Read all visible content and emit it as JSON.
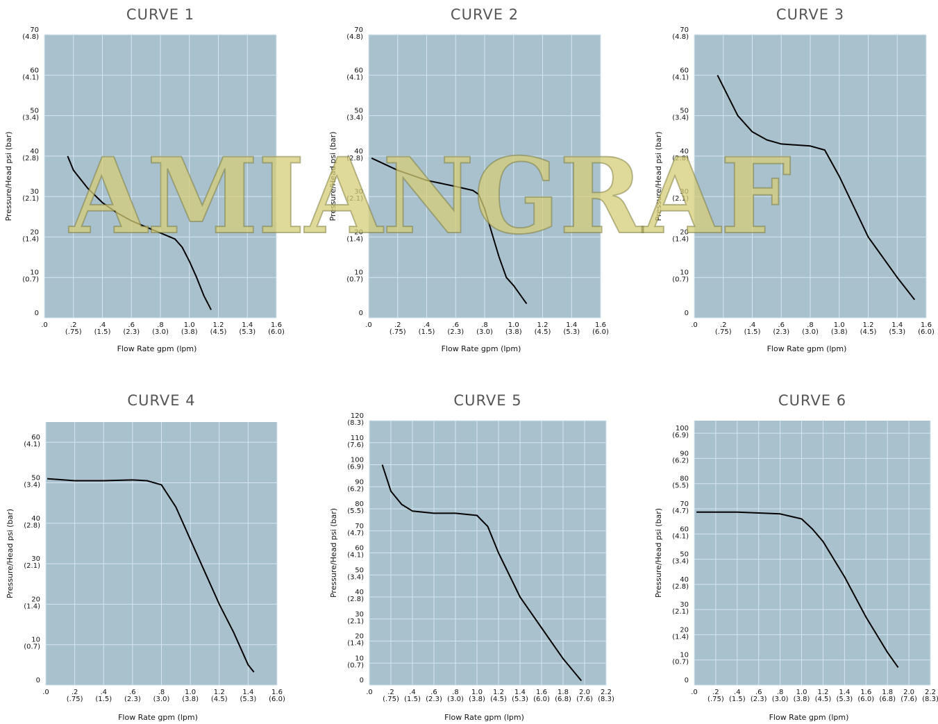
{
  "watermark": "AMIANGRAF",
  "chart_data": [
    {
      "type": "line",
      "title": "CURVE 1",
      "x_label": "Flow Rate gpm (lpm)",
      "y_label": "Pressure/Head psi (bar)",
      "grid": true,
      "xlim": [
        0,
        1.6
      ],
      "ylim": [
        0,
        70
      ],
      "xticks": [
        {
          "value": 0,
          "label": [
            ".0"
          ]
        },
        {
          "value": 0.2,
          "label": [
            ".2",
            "(.75)"
          ]
        },
        {
          "value": 0.4,
          "label": [
            ".4",
            "(1.5)"
          ]
        },
        {
          "value": 0.6,
          "label": [
            ".6",
            "(2.3)"
          ]
        },
        {
          "value": 0.8,
          "label": [
            ".8",
            "(3.0)"
          ]
        },
        {
          "value": 1.0,
          "label": [
            "1.0",
            "(3.8)"
          ]
        },
        {
          "value": 1.2,
          "label": [
            "1.2",
            "(4.5)"
          ]
        },
        {
          "value": 1.4,
          "label": [
            "1.4",
            "(5.3)"
          ]
        },
        {
          "value": 1.6,
          "label": [
            "1.6",
            "(6.0)"
          ]
        }
      ],
      "yticks": [
        {
          "value": 0,
          "label": [
            "0"
          ]
        },
        {
          "value": 10,
          "label": [
            "10",
            "(0.7)"
          ]
        },
        {
          "value": 20,
          "label": [
            "20",
            "(1.4)"
          ]
        },
        {
          "value": 30,
          "label": [
            "30",
            "(2.1)"
          ]
        },
        {
          "value": 40,
          "label": [
            "40",
            "(2.8)"
          ]
        },
        {
          "value": 50,
          "label": [
            "50",
            "(3.4)"
          ]
        },
        {
          "value": 60,
          "label": [
            "60",
            "(4.1)"
          ]
        },
        {
          "value": 70,
          "label": [
            "70",
            "(4.8)"
          ]
        }
      ],
      "series": [
        {
          "color": "#000000",
          "x": [
            0.16,
            0.2,
            0.3,
            0.4,
            0.5,
            0.6,
            0.7,
            0.8,
            0.9,
            0.95,
            1.0,
            1.05,
            1.1,
            1.15
          ],
          "values": [
            40,
            36.5,
            32,
            28.5,
            26,
            24,
            22.5,
            21,
            19.5,
            17.5,
            14,
            10,
            5.5,
            2
          ]
        }
      ]
    },
    {
      "type": "line",
      "title": "CURVE 2",
      "x_label": "Flow Rate gpm (lpm)",
      "y_label": "Pressure/Head psi (bar)",
      "grid": true,
      "xlim": [
        0,
        1.6
      ],
      "ylim": [
        0,
        70
      ],
      "xticks": [
        {
          "value": 0,
          "label": [
            ".0"
          ]
        },
        {
          "value": 0.2,
          "label": [
            ".2",
            "(.75)"
          ]
        },
        {
          "value": 0.4,
          "label": [
            ".4",
            "(1.5)"
          ]
        },
        {
          "value": 0.6,
          "label": [
            ".6",
            "(2.3)"
          ]
        },
        {
          "value": 0.8,
          "label": [
            ".8",
            "(3.0)"
          ]
        },
        {
          "value": 1.0,
          "label": [
            "1.0",
            "(3.8)"
          ]
        },
        {
          "value": 1.2,
          "label": [
            "1.2",
            "(4.5)"
          ]
        },
        {
          "value": 1.4,
          "label": [
            "1.4",
            "(5.3)"
          ]
        },
        {
          "value": 1.6,
          "label": [
            "1.6",
            "(6.0)"
          ]
        }
      ],
      "yticks": [
        {
          "value": 0,
          "label": [
            "0"
          ]
        },
        {
          "value": 10,
          "label": [
            "10",
            "(0.7)"
          ]
        },
        {
          "value": 20,
          "label": [
            "20",
            "(1.4)"
          ]
        },
        {
          "value": 30,
          "label": [
            "30",
            "(2.1)"
          ]
        },
        {
          "value": 40,
          "label": [
            "40",
            "(2.8)"
          ]
        },
        {
          "value": 50,
          "label": [
            "50",
            "(3.4)"
          ]
        },
        {
          "value": 60,
          "label": [
            "60",
            "(4.1)"
          ]
        },
        {
          "value": 70,
          "label": [
            "70",
            "(4.8)"
          ]
        }
      ],
      "series": [
        {
          "color": "#000000",
          "x": [
            0.02,
            0.2,
            0.4,
            0.6,
            0.72,
            0.76,
            0.8,
            0.85,
            0.9,
            0.95,
            1.0,
            1.09
          ],
          "values": [
            39.5,
            36.5,
            34,
            32.5,
            31.5,
            30.5,
            27,
            21,
            15,
            10,
            8,
            3.5
          ]
        }
      ]
    },
    {
      "type": "line",
      "title": "CURVE 3",
      "x_label": "Flow Rate gpm (lpm)",
      "y_label": "Pressure/Head psi (bar)",
      "grid": true,
      "xlim": [
        0,
        1.6
      ],
      "ylim": [
        0,
        70
      ],
      "xticks": [
        {
          "value": 0,
          "label": [
            ".0"
          ]
        },
        {
          "value": 0.2,
          "label": [
            ".2",
            "(.75)"
          ]
        },
        {
          "value": 0.4,
          "label": [
            ".4",
            "(1.5)"
          ]
        },
        {
          "value": 0.6,
          "label": [
            ".6",
            "(2.3)"
          ]
        },
        {
          "value": 0.8,
          "label": [
            ".8",
            "(3.0)"
          ]
        },
        {
          "value": 1.0,
          "label": [
            "1.0",
            "(3.8)"
          ]
        },
        {
          "value": 1.2,
          "label": [
            "1.2",
            "(4.5)"
          ]
        },
        {
          "value": 1.4,
          "label": [
            "1.4",
            "(5.3)"
          ]
        },
        {
          "value": 1.6,
          "label": [
            "1.6",
            "(6.0)"
          ]
        }
      ],
      "yticks": [
        {
          "value": 0,
          "label": [
            "0"
          ]
        },
        {
          "value": 10,
          "label": [
            "10",
            "(0.7)"
          ]
        },
        {
          "value": 20,
          "label": [
            "20",
            "(1.4)"
          ]
        },
        {
          "value": 30,
          "label": [
            "30",
            "(2.1)"
          ]
        },
        {
          "value": 40,
          "label": [
            "40",
            "(2.8)"
          ]
        },
        {
          "value": 50,
          "label": [
            "50",
            "(3.4)"
          ]
        },
        {
          "value": 60,
          "label": [
            "60",
            "(4.1)"
          ]
        },
        {
          "value": 70,
          "label": [
            "70",
            "(4.8)"
          ]
        }
      ],
      "series": [
        {
          "color": "#000000",
          "x": [
            0.16,
            0.3,
            0.4,
            0.5,
            0.6,
            0.8,
            0.9,
            1.0,
            1.2,
            1.4,
            1.52
          ],
          "values": [
            60,
            50,
            46,
            44,
            43,
            42.5,
            41.5,
            35,
            20,
            10,
            4.5
          ]
        }
      ]
    },
    {
      "type": "line",
      "title": "CURVE 4",
      "x_label": "Flow Rate gpm (lpm)",
      "y_label": "Pressure/Head psi (bar)",
      "grid": true,
      "xlim": [
        0,
        1.6
      ],
      "ylim": [
        0,
        65
      ],
      "xticks": [
        {
          "value": 0,
          "label": [
            ".0"
          ]
        },
        {
          "value": 0.2,
          "label": [
            ".2",
            "(.75)"
          ]
        },
        {
          "value": 0.4,
          "label": [
            ".4",
            "(1.5)"
          ]
        },
        {
          "value": 0.6,
          "label": [
            ".6",
            "(2.3)"
          ]
        },
        {
          "value": 0.8,
          "label": [
            ".8",
            "(3.0)"
          ]
        },
        {
          "value": 1.0,
          "label": [
            "1.0",
            "(3.8)"
          ]
        },
        {
          "value": 1.2,
          "label": [
            "1.2",
            "(4.5)"
          ]
        },
        {
          "value": 1.4,
          "label": [
            "1.4",
            "(5.3)"
          ]
        },
        {
          "value": 1.6,
          "label": [
            "1.6",
            "(6.0)"
          ]
        }
      ],
      "yticks": [
        {
          "value": 0,
          "label": [
            "0"
          ]
        },
        {
          "value": 10,
          "label": [
            "10",
            "(0.7)"
          ]
        },
        {
          "value": 20,
          "label": [
            "20",
            "(1.4)"
          ]
        },
        {
          "value": 30,
          "label": [
            "30",
            "(2.1)"
          ]
        },
        {
          "value": 40,
          "label": [
            "40",
            "(2.8)"
          ]
        },
        {
          "value": 50,
          "label": [
            "50",
            "(3.4)"
          ]
        },
        {
          "value": 60,
          "label": [
            "60",
            "(4.1)"
          ]
        }
      ],
      "series": [
        {
          "color": "#000000",
          "x": [
            0.01,
            0.2,
            0.4,
            0.6,
            0.7,
            0.8,
            0.9,
            1.0,
            1.1,
            1.2,
            1.3,
            1.4,
            1.44
          ],
          "values": [
            51,
            50.5,
            50.5,
            50.7,
            50.5,
            49.5,
            44,
            36,
            28,
            20,
            13,
            5,
            3.2
          ]
        }
      ]
    },
    {
      "type": "line",
      "title": "CURVE 5",
      "x_label": "Flow Rate gpm (lpm)",
      "y_label": "Pressure/Head psi (bar)",
      "grid": true,
      "xlim": [
        0,
        2.2
      ],
      "ylim": [
        0,
        120
      ],
      "xticks": [
        {
          "value": 0,
          "label": [
            ".0"
          ]
        },
        {
          "value": 0.2,
          "label": [
            ".2",
            "(.75)"
          ]
        },
        {
          "value": 0.4,
          "label": [
            ".4",
            "(1.5)"
          ]
        },
        {
          "value": 0.6,
          "label": [
            ".6",
            "(2.3)"
          ]
        },
        {
          "value": 0.8,
          "label": [
            ".8",
            "(3.0)"
          ]
        },
        {
          "value": 1.0,
          "label": [
            "1.0",
            "(3.8)"
          ]
        },
        {
          "value": 1.2,
          "label": [
            "1.2",
            "(4.5)"
          ]
        },
        {
          "value": 1.4,
          "label": [
            "1.4",
            "(5.3)"
          ]
        },
        {
          "value": 1.6,
          "label": [
            "1.6",
            "(6.0)"
          ]
        },
        {
          "value": 1.8,
          "label": [
            "1.8",
            "(6.8)"
          ]
        },
        {
          "value": 2.0,
          "label": [
            "2.0",
            "(7.6)"
          ]
        },
        {
          "value": 2.2,
          "label": [
            "2.2",
            "(8.3)"
          ]
        }
      ],
      "yticks": [
        {
          "value": 0,
          "label": [
            "0"
          ]
        },
        {
          "value": 10,
          "label": [
            "10",
            "(0.7)"
          ]
        },
        {
          "value": 20,
          "label": [
            "20",
            "(1.4)"
          ]
        },
        {
          "value": 30,
          "label": [
            "30",
            "(2.1)"
          ]
        },
        {
          "value": 40,
          "label": [
            "40",
            "(2.8)"
          ]
        },
        {
          "value": 50,
          "label": [
            "50",
            "(3.4)"
          ]
        },
        {
          "value": 60,
          "label": [
            "60",
            "(4.1)"
          ]
        },
        {
          "value": 70,
          "label": [
            "70",
            "(4.7)"
          ]
        },
        {
          "value": 80,
          "label": [
            "80",
            "(5.5)"
          ]
        },
        {
          "value": 90,
          "label": [
            "90",
            "(6.2)"
          ]
        },
        {
          "value": 100,
          "label": [
            "100",
            "(6.9)"
          ]
        },
        {
          "value": 110,
          "label": [
            "110",
            "(7.6)"
          ]
        },
        {
          "value": 120,
          "label": [
            "120",
            "(8.3)"
          ]
        }
      ],
      "series": [
        {
          "color": "#000000",
          "x": [
            0.12,
            0.2,
            0.3,
            0.4,
            0.6,
            0.8,
            1.0,
            1.1,
            1.2,
            1.4,
            1.6,
            1.8,
            1.97
          ],
          "values": [
            100,
            88,
            82,
            79,
            78,
            78,
            77,
            72,
            60,
            40,
            26,
            12,
            2
          ]
        }
      ]
    },
    {
      "type": "line",
      "title": "CURVE 6",
      "x_label": "Flow Rate gpm (lpm)",
      "y_label": "Pressure/Head psi (bar)",
      "grid": true,
      "xlim": [
        0,
        2.2
      ],
      "ylim": [
        0,
        105
      ],
      "xticks": [
        {
          "value": 0,
          "label": [
            ".0"
          ]
        },
        {
          "value": 0.2,
          "label": [
            ".2",
            "(.75)"
          ]
        },
        {
          "value": 0.4,
          "label": [
            ".4",
            "(1.5)"
          ]
        },
        {
          "value": 0.6,
          "label": [
            ".6",
            "(2.3)"
          ]
        },
        {
          "value": 0.8,
          "label": [
            ".8",
            "(3.0)"
          ]
        },
        {
          "value": 1.0,
          "label": [
            "1.0",
            "(3.8)"
          ]
        },
        {
          "value": 1.2,
          "label": [
            "1.2",
            "(4.5)"
          ]
        },
        {
          "value": 1.4,
          "label": [
            "1.4",
            "(5.3)"
          ]
        },
        {
          "value": 1.6,
          "label": [
            "1.6",
            "(6.0)"
          ]
        },
        {
          "value": 1.8,
          "label": [
            "1.8",
            "(6.8)"
          ]
        },
        {
          "value": 2.0,
          "label": [
            "2.0",
            "(7.6)"
          ]
        },
        {
          "value": 2.2,
          "label": [
            "2.2",
            "(8.3)"
          ]
        }
      ],
      "yticks": [
        {
          "value": 0,
          "label": [
            "0"
          ]
        },
        {
          "value": 10,
          "label": [
            "10",
            "(0.7)"
          ]
        },
        {
          "value": 20,
          "label": [
            "20",
            "(1.4)"
          ]
        },
        {
          "value": 30,
          "label": [
            "30",
            "(2.1)"
          ]
        },
        {
          "value": 40,
          "label": [
            "40",
            "(2.8)"
          ]
        },
        {
          "value": 50,
          "label": [
            "50",
            "(3.4)"
          ]
        },
        {
          "value": 60,
          "label": [
            "60",
            "(4.1)"
          ]
        },
        {
          "value": 70,
          "label": [
            "70",
            "(4.7)"
          ]
        },
        {
          "value": 80,
          "label": [
            "80",
            "(5.5)"
          ]
        },
        {
          "value": 90,
          "label": [
            "90",
            "(6.2)"
          ]
        },
        {
          "value": 100,
          "label": [
            "100",
            "(6.9)"
          ]
        }
      ],
      "series": [
        {
          "color": "#000000",
          "x": [
            0.02,
            0.4,
            0.8,
            1.0,
            1.1,
            1.2,
            1.4,
            1.6,
            1.8,
            1.9
          ],
          "values": [
            68.7,
            68.7,
            68,
            66,
            62,
            57,
            43,
            27,
            13,
            7
          ]
        }
      ]
    }
  ]
}
